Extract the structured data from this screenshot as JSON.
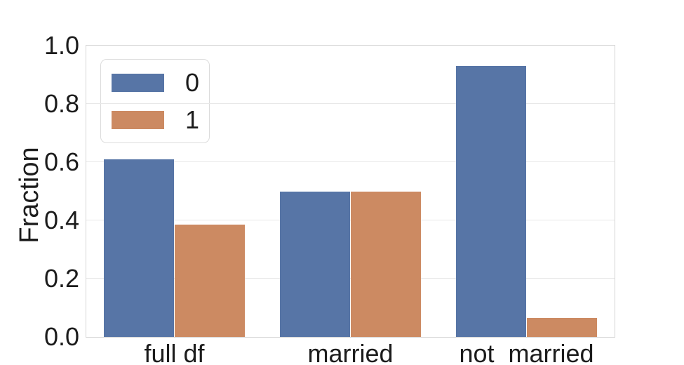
{
  "chart_data": {
    "type": "bar",
    "title": "",
    "xlabel": "",
    "ylabel": "Fraction",
    "categories": [
      "full df",
      "married",
      "not  married"
    ],
    "series": [
      {
        "name": "0",
        "color": "#5775a6",
        "values": [
          0.61,
          0.5,
          0.93
        ]
      },
      {
        "name": "1",
        "color": "#cc8a62",
        "values": [
          0.385,
          0.5,
          0.065
        ]
      }
    ],
    "ylim": [
      0,
      1.0
    ],
    "yticks": [
      0.0,
      0.2,
      0.4,
      0.6,
      0.8,
      1.0
    ],
    "ytick_labels": [
      "0.0",
      "0.2",
      "0.4",
      "0.6",
      "0.8",
      "1.0"
    ],
    "grid": "horizontal",
    "legend_position": "upper-left",
    "bar_group_width_fraction": 0.8
  },
  "colors": {
    "background": "#ffffff",
    "text": "#1c1c1c",
    "gridline": "#e8e8e8",
    "spine": "#d5d5d5",
    "series_0": "#5775a6",
    "series_1": "#cc8a62"
  }
}
